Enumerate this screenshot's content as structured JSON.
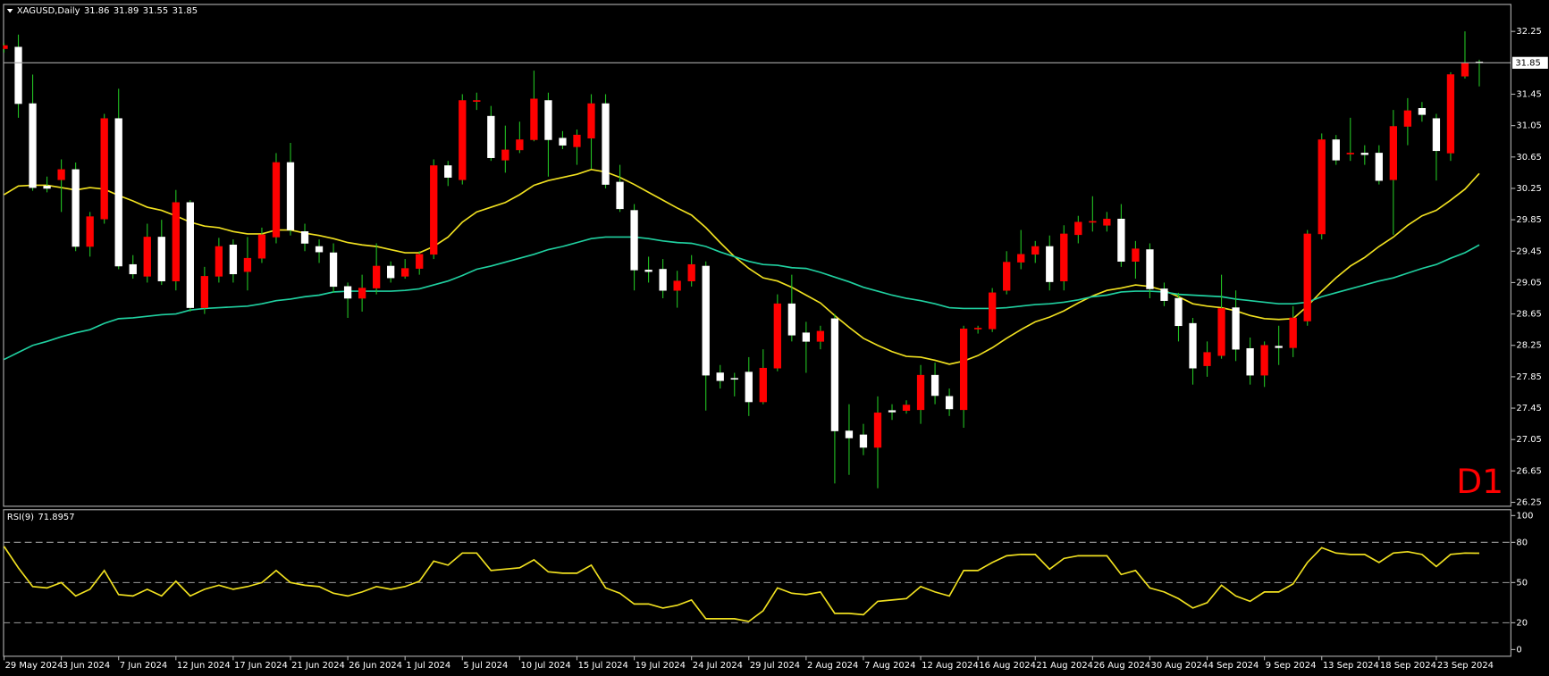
{
  "chart_data": [
    {
      "type": "candlestick",
      "title": "XAGUSD,Daily",
      "annotation": "D1",
      "categories": [
        "29 May 2024",
        null,
        null,
        null,
        "3 Jun 2024",
        null,
        null,
        null,
        "7 Jun 2024",
        null,
        null,
        null,
        "12 Jun 2024",
        null,
        null,
        null,
        "17 Jun 2024",
        null,
        null,
        null,
        "21 Jun 2024",
        null,
        null,
        null,
        "26 Jun 2024",
        null,
        null,
        null,
        "1 Jul 2024",
        null,
        null,
        null,
        "5 Jul 2024",
        null,
        null,
        null,
        "10 Jul 2024",
        null,
        null,
        null,
        "15 Jul 2024",
        null,
        null,
        null,
        "19 Jul 2024",
        null,
        null,
        null,
        "24 Jul 2024",
        null,
        null,
        null,
        "29 Jul 2024",
        null,
        null,
        null,
        "2 Aug 2024",
        null,
        null,
        null,
        "7 Aug 2024",
        null,
        null,
        null,
        "12 Aug 2024",
        null,
        null,
        null,
        "16 Aug 2024",
        null,
        null,
        null,
        "21 Aug 2024",
        null,
        null,
        null,
        "26 Aug 2024",
        null,
        null,
        null,
        "30 Aug 2024",
        null,
        null,
        null,
        "4 Sep 2024",
        null,
        null,
        null,
        "9 Sep 2024",
        null,
        null,
        null,
        "13 Sep 2024",
        null,
        null,
        null,
        "18 Sep 2024",
        null,
        null,
        null,
        "23 Sep 2024",
        null,
        null,
        null
      ],
      "open": [
        32.03,
        32.05,
        31.33,
        30.28,
        30.36,
        30.49,
        29.51,
        29.86,
        31.14,
        29.28,
        29.13,
        29.63,
        29.07,
        30.07,
        28.73,
        29.13,
        29.53,
        29.19,
        29.36,
        29.63,
        30.58,
        29.7,
        29.51,
        29.43,
        29.0,
        28.85,
        28.98,
        29.26,
        29.13,
        29.23,
        29.41,
        30.54,
        30.36,
        31.36,
        31.17,
        30.61,
        30.74,
        30.87,
        31.37,
        30.89,
        30.78,
        30.89,
        31.33,
        30.33,
        29.97,
        29.21,
        29.22,
        28.95,
        29.07,
        29.26,
        27.9,
        27.83,
        27.91,
        27.53,
        27.96,
        28.78,
        28.41,
        28.3,
        28.59,
        27.16,
        27.11,
        26.95,
        27.42,
        27.42,
        27.43,
        27.87,
        27.6,
        27.43,
        28.46,
        28.46,
        28.95,
        29.31,
        29.41,
        29.51,
        29.07,
        29.66,
        29.82,
        29.78,
        29.86,
        29.32,
        29.47,
        28.97,
        28.85,
        28.53,
        27.99,
        28.12,
        28.73,
        28.21,
        27.87,
        28.24,
        28.22,
        28.56,
        29.67,
        30.87,
        30.69,
        30.7,
        30.7,
        30.36,
        31.04,
        31.27,
        31.14,
        30.7,
        31.68,
        31.86
      ],
      "high": [
        32.1,
        32.21,
        31.7,
        30.4,
        30.62,
        30.58,
        29.95,
        31.2,
        31.52,
        29.4,
        29.8,
        29.85,
        30.23,
        30.1,
        29.25,
        29.62,
        29.6,
        29.63,
        29.75,
        30.7,
        30.83,
        29.8,
        29.6,
        29.55,
        29.05,
        29.15,
        29.55,
        29.32,
        29.35,
        29.45,
        30.62,
        30.6,
        31.45,
        31.47,
        31.3,
        31.05,
        31.1,
        31.75,
        31.47,
        30.98,
        31.0,
        31.45,
        31.45,
        30.55,
        30.05,
        29.38,
        29.35,
        29.2,
        29.4,
        29.32,
        28.0,
        27.9,
        28.1,
        28.2,
        28.9,
        29.15,
        28.55,
        28.5,
        28.65,
        27.5,
        27.25,
        27.6,
        27.5,
        27.55,
        28.0,
        28.03,
        27.7,
        28.5,
        28.5,
        28.98,
        29.45,
        29.72,
        29.58,
        29.65,
        29.78,
        29.9,
        30.15,
        29.95,
        30.05,
        29.58,
        29.55,
        29.05,
        28.92,
        28.6,
        28.3,
        29.15,
        28.95,
        28.35,
        28.3,
        28.5,
        28.75,
        29.72,
        30.95,
        30.93,
        31.15,
        30.8,
        30.8,
        31.25,
        31.4,
        31.35,
        31.2,
        31.73,
        32.25,
        31.89
      ],
      "low": [
        31.98,
        31.15,
        30.22,
        30.2,
        29.95,
        29.45,
        29.38,
        29.8,
        29.22,
        29.1,
        29.05,
        29.02,
        28.95,
        28.68,
        28.65,
        29.05,
        29.05,
        28.95,
        29.3,
        29.55,
        29.65,
        29.45,
        29.3,
        28.92,
        28.6,
        28.68,
        28.9,
        29.05,
        29.1,
        29.15,
        29.35,
        30.28,
        30.3,
        31.25,
        30.6,
        30.45,
        30.7,
        30.85,
        30.4,
        30.75,
        30.55,
        30.5,
        30.25,
        29.95,
        28.95,
        29.05,
        28.85,
        28.73,
        29.0,
        27.42,
        27.7,
        27.6,
        27.35,
        27.5,
        27.92,
        28.3,
        27.9,
        28.2,
        26.49,
        26.6,
        26.85,
        26.43,
        27.3,
        27.38,
        27.25,
        27.5,
        27.35,
        27.2,
        28.4,
        28.42,
        28.9,
        29.22,
        29.3,
        28.95,
        28.95,
        29.55,
        29.7,
        29.7,
        29.25,
        29.1,
        28.85,
        28.75,
        28.3,
        27.75,
        27.85,
        28.08,
        28.05,
        27.75,
        27.72,
        28.0,
        28.1,
        28.5,
        29.6,
        30.55,
        30.6,
        30.55,
        30.3,
        29.66,
        30.8,
        31.1,
        30.35,
        30.6,
        31.65,
        31.55
      ],
      "close": [
        32.07,
        31.33,
        30.26,
        30.25,
        30.49,
        29.51,
        29.89,
        31.14,
        29.26,
        29.16,
        29.63,
        29.07,
        30.07,
        28.73,
        29.13,
        29.51,
        29.16,
        29.36,
        29.66,
        30.58,
        29.72,
        29.55,
        29.44,
        29.0,
        28.85,
        28.98,
        29.26,
        29.11,
        29.23,
        29.41,
        30.54,
        30.39,
        31.37,
        31.37,
        30.64,
        30.74,
        30.87,
        31.39,
        30.87,
        30.8,
        30.93,
        31.33,
        30.3,
        29.99,
        29.21,
        29.19,
        28.95,
        29.07,
        29.28,
        27.87,
        27.8,
        27.82,
        27.53,
        27.96,
        28.78,
        28.38,
        28.3,
        28.43,
        27.16,
        27.07,
        26.95,
        27.39,
        27.4,
        27.49,
        27.87,
        27.61,
        27.44,
        28.46,
        28.47,
        28.92,
        29.31,
        29.41,
        29.51,
        29.06,
        29.67,
        29.82,
        29.83,
        29.86,
        29.32,
        29.48,
        28.97,
        28.82,
        28.5,
        27.96,
        28.16,
        28.72,
        28.2,
        27.87,
        28.25,
        28.22,
        28.6,
        29.67,
        30.87,
        30.61,
        30.7,
        30.68,
        30.35,
        31.04,
        31.24,
        31.19,
        30.73,
        31.7,
        31.85,
        31.85
      ],
      "bull_color": "#ff0000",
      "bear_color": "#ffffff",
      "wick_color": "#22c022",
      "overlays": [
        {
          "color": "#f0e020",
          "values": [
            30.17,
            30.28,
            30.29,
            30.29,
            30.26,
            30.23,
            30.26,
            30.24,
            30.16,
            30.09,
            30.01,
            29.97,
            29.9,
            29.82,
            29.77,
            29.75,
            29.7,
            29.67,
            29.67,
            29.72,
            29.72,
            29.68,
            29.65,
            29.61,
            29.56,
            29.53,
            29.51,
            29.47,
            29.43,
            29.43,
            29.51,
            29.63,
            29.82,
            29.95,
            30.01,
            30.07,
            30.17,
            30.29,
            30.35,
            30.39,
            30.43,
            30.49,
            30.46,
            30.39,
            30.3,
            30.2,
            30.1,
            30.0,
            29.91,
            29.75,
            29.56,
            29.38,
            29.23,
            29.11,
            29.07,
            28.99,
            28.89,
            28.79,
            28.63,
            28.48,
            28.34,
            28.25,
            28.17,
            28.11,
            28.1,
            28.06,
            28.01,
            28.05,
            28.12,
            28.22,
            28.34,
            28.45,
            28.55,
            28.61,
            28.69,
            28.79,
            28.88,
            28.95,
            28.98,
            29.02,
            29.0,
            28.95,
            28.87,
            28.78,
            28.75,
            28.73,
            28.69,
            28.63,
            28.59,
            28.58,
            28.59,
            28.75,
            28.94,
            29.11,
            29.26,
            29.37,
            29.51,
            29.63,
            29.78,
            29.9,
            29.97,
            30.1,
            30.24,
            30.44
          ]
        },
        {
          "color": "#20d0a0",
          "values": [
            28.07,
            28.16,
            28.25,
            28.3,
            28.36,
            28.41,
            28.45,
            28.53,
            28.59,
            28.6,
            28.62,
            28.64,
            28.65,
            28.7,
            28.72,
            28.73,
            28.74,
            28.75,
            28.78,
            28.82,
            28.84,
            28.87,
            28.89,
            28.93,
            28.94,
            28.94,
            28.94,
            28.94,
            28.95,
            28.97,
            29.02,
            29.07,
            29.14,
            29.22,
            29.26,
            29.31,
            29.36,
            29.41,
            29.47,
            29.51,
            29.56,
            29.61,
            29.63,
            29.63,
            29.63,
            29.61,
            29.58,
            29.56,
            29.55,
            29.51,
            29.44,
            29.38,
            29.32,
            29.28,
            29.27,
            29.24,
            29.23,
            29.18,
            29.12,
            29.06,
            28.99,
            28.94,
            28.89,
            28.85,
            28.82,
            28.78,
            28.73,
            28.72,
            28.72,
            28.72,
            28.73,
            28.75,
            28.77,
            28.78,
            28.8,
            28.83,
            28.87,
            28.89,
            28.93,
            28.94,
            28.94,
            28.93,
            28.9,
            28.89,
            28.88,
            28.87,
            28.84,
            28.82,
            28.8,
            28.78,
            28.78,
            28.8,
            28.87,
            28.92,
            28.97,
            29.02,
            29.07,
            29.11,
            29.17,
            29.23,
            29.28,
            29.36,
            29.43,
            29.53
          ]
        }
      ],
      "ylim": [
        26.2,
        32.6
      ],
      "yticks": [
        32.25,
        31.45,
        31.05,
        30.65,
        30.25,
        29.85,
        29.45,
        29.05,
        28.65,
        28.25,
        27.85,
        27.45,
        27.05,
        26.65,
        26.25
      ]
    },
    {
      "type": "line",
      "title": "RSI(9)",
      "color": "#f0e020",
      "values": [
        77,
        61,
        47,
        46,
        50,
        40,
        45,
        59,
        41,
        40,
        45,
        40,
        51,
        40,
        45,
        48,
        45,
        47,
        50,
        59,
        50,
        48,
        47,
        42,
        40,
        43,
        47,
        45,
        47,
        51,
        66,
        63,
        72,
        72,
        59,
        60,
        61,
        67,
        58,
        57,
        57,
        63,
        46,
        42,
        34,
        34,
        31,
        33,
        37,
        23,
        23,
        23,
        21,
        29,
        46,
        42,
        41,
        43,
        27,
        27,
        26,
        36,
        37,
        38,
        47,
        43,
        40,
        59,
        59,
        65,
        70,
        71,
        71,
        60,
        68,
        70,
        70,
        70,
        56,
        59,
        46,
        43,
        38,
        31,
        35,
        48,
        40,
        36,
        43,
        43,
        49,
        65,
        76,
        72,
        71,
        71,
        65,
        72,
        73,
        71,
        62,
        71,
        72,
        71.8957
      ],
      "ylim": [
        -5,
        104
      ],
      "yticks": [
        100,
        80,
        50,
        20,
        0
      ],
      "levels": [
        80,
        50,
        20
      ]
    }
  ]
}
